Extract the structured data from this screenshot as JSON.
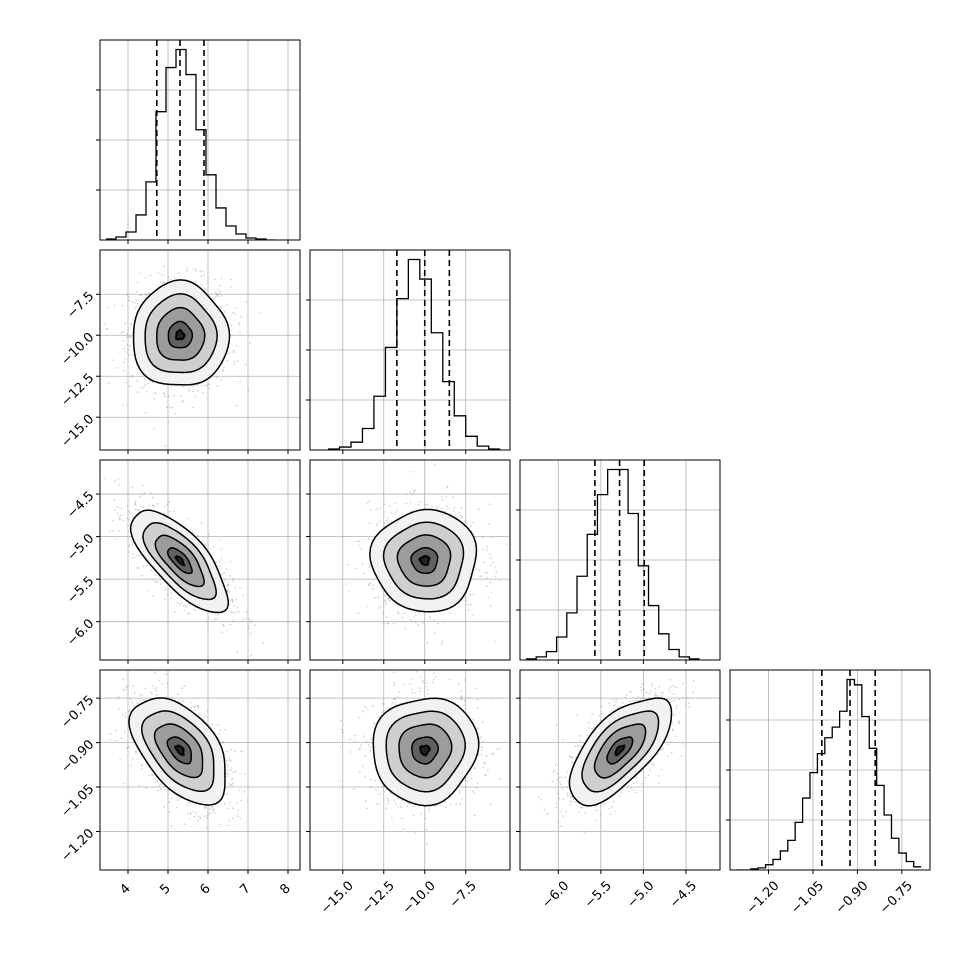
{
  "chart_data": {
    "type": "corner",
    "description_labels": [],
    "grid": true,
    "parameters": [
      {
        "index": 0,
        "range": [
          3.3,
          8.3
        ],
        "ticks": [
          4,
          5,
          6,
          7,
          8
        ],
        "tick_labels": [
          "4",
          "5",
          "6",
          "7",
          "8"
        ],
        "median": 5.3,
        "quantiles": [
          4.72,
          5.3,
          5.9
        ],
        "std": 0.6
      },
      {
        "index": 1,
        "range": [
          -17.0,
          -4.8
        ],
        "ticks": [
          -15.0,
          -12.5,
          -10.0,
          -7.5
        ],
        "tick_labels": [
          "−15.0",
          "−12.5",
          "−10.0",
          "−7.5"
        ],
        "median": -10.0,
        "quantiles": [
          -11.7,
          -10.0,
          -8.5
        ],
        "std": 1.6
      },
      {
        "index": 2,
        "range": [
          -6.45,
          -4.1
        ],
        "ticks": [
          -6.0,
          -5.5,
          -5.0,
          -4.5
        ],
        "tick_labels": [
          "−6.0",
          "−5.5",
          "−5.0",
          "−4.5"
        ],
        "median": -5.28,
        "quantiles": [
          -5.57,
          -5.28,
          -4.99
        ],
        "std": 0.3
      },
      {
        "index": 3,
        "range": [
          -1.33,
          -0.655
        ],
        "ticks": [
          -1.2,
          -1.05,
          -0.9,
          -0.75
        ],
        "tick_labels": [
          "−1.20",
          "−1.05",
          "−0.90",
          "−0.75"
        ],
        "median": -0.925,
        "quantiles": [
          -1.02,
          -0.925,
          -0.84
        ],
        "std": 0.09
      }
    ],
    "histograms": [
      {
        "param": 0,
        "bin_edges": [
          3.45,
          3.7,
          3.95,
          4.2,
          4.45,
          4.7,
          4.95,
          5.2,
          5.45,
          5.7,
          5.95,
          6.2,
          6.45,
          6.7,
          6.95,
          7.2,
          7.45,
          7.7
        ],
        "counts": [
          1,
          3,
          8,
          25,
          58,
          128,
          172,
          190,
          165,
          110,
          65,
          32,
          14,
          6,
          2,
          1,
          0
        ]
      },
      {
        "param": 1,
        "bin_edges": [
          -15.9,
          -15.2,
          -14.5,
          -13.8,
          -13.1,
          -12.4,
          -11.7,
          -11.0,
          -10.3,
          -9.6,
          -8.9,
          -8.2,
          -7.5,
          -6.8,
          -6.1,
          -5.4
        ],
        "counts": [
          1,
          3,
          8,
          22,
          55,
          105,
          155,
          195,
          175,
          120,
          70,
          35,
          14,
          4,
          1
        ]
      },
      {
        "param": 2,
        "bin_edges": [
          -6.38,
          -6.26,
          -6.14,
          -6.02,
          -5.9,
          -5.78,
          -5.66,
          -5.54,
          -5.42,
          -5.3,
          -5.18,
          -5.06,
          -4.94,
          -4.82,
          -4.7,
          -4.58,
          -4.46,
          -4.34
        ],
        "counts": [
          1,
          3,
          8,
          22,
          45,
          80,
          120,
          158,
          182,
          182,
          140,
          90,
          52,
          25,
          10,
          3,
          1
        ]
      },
      {
        "param": 3,
        "bin_edges": [
          -1.31,
          -1.285,
          -1.26,
          -1.235,
          -1.21,
          -1.185,
          -1.16,
          -1.135,
          -1.11,
          -1.085,
          -1.06,
          -1.035,
          -1.01,
          -0.985,
          -0.96,
          -0.935,
          -0.91,
          -0.885,
          -0.86,
          -0.835,
          -0.81,
          -0.785,
          -0.76,
          -0.735,
          -0.71,
          -0.685
        ],
        "counts": [
          0,
          0,
          1,
          2,
          5,
          10,
          18,
          28,
          45,
          68,
          92,
          110,
          125,
          135,
          150,
          180,
          175,
          145,
          115,
          80,
          52,
          30,
          16,
          8,
          3
        ]
      }
    ],
    "pairs": [
      {
        "x_param": 0,
        "y_param": 1,
        "correlation": 0.0
      },
      {
        "x_param": 0,
        "y_param": 2,
        "correlation": -0.72
      },
      {
        "x_param": 1,
        "y_param": 2,
        "correlation": 0.0
      },
      {
        "x_param": 0,
        "y_param": 3,
        "correlation": -0.5
      },
      {
        "x_param": 1,
        "y_param": 3,
        "correlation": 0.05
      },
      {
        "x_param": 2,
        "y_param": 3,
        "correlation": 0.65
      }
    ],
    "contour_levels_sigma": [
      0.5,
      1.0,
      1.5,
      2.0
    ]
  }
}
